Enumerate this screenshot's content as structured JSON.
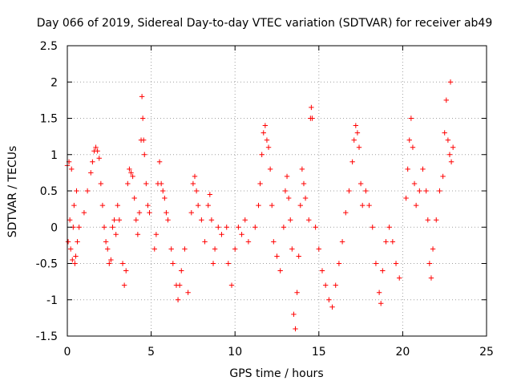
{
  "chart_data": {
    "type": "scatter",
    "title": "Day 066 of 2019, Sidereal Day-to-day VTEC variation (SDTVAR) for receiver ab49",
    "xlabel": "GPS time / hours",
    "ylabel": "SDTVAR / TECUs",
    "xlim": [
      0,
      25
    ],
    "ylim": [
      -1.5,
      2.5
    ],
    "xticks": [
      0,
      5,
      10,
      15,
      20,
      25
    ],
    "yticks": [
      -1.5,
      -1,
      -0.5,
      0,
      0.5,
      1,
      1.5,
      2,
      2.5
    ],
    "xtick_labels": [
      "0",
      "5",
      "10",
      "15",
      "20",
      "25"
    ],
    "ytick_labels": [
      "-1.5",
      "-1",
      "-0.5",
      "0",
      "0.5",
      "1",
      "1.5",
      "2",
      "2.5"
    ],
    "grid": true,
    "marker": "+",
    "color": "#ff0000",
    "x_range_of_data": [
      0,
      23
    ],
    "series": [
      {
        "name": "SDTVAR",
        "points": [
          [
            0.0,
            0.85
          ],
          [
            0.05,
            -0.2
          ],
          [
            0.1,
            0.9
          ],
          [
            0.15,
            0.1
          ],
          [
            0.2,
            -0.3
          ],
          [
            0.25,
            0.8
          ],
          [
            0.3,
            -0.45
          ],
          [
            0.35,
            0.0
          ],
          [
            0.4,
            0.3
          ],
          [
            0.45,
            -0.5
          ],
          [
            0.5,
            -0.4
          ],
          [
            0.55,
            0.5
          ],
          [
            0.6,
            -0.2
          ],
          [
            0.7,
            0.0
          ],
          [
            1.0,
            0.2
          ],
          [
            1.2,
            0.5
          ],
          [
            1.4,
            0.75
          ],
          [
            1.5,
            0.9
          ],
          [
            1.6,
            1.05
          ],
          [
            1.7,
            1.1
          ],
          [
            1.8,
            1.05
          ],
          [
            1.9,
            0.95
          ],
          [
            2.0,
            0.6
          ],
          [
            2.1,
            0.3
          ],
          [
            2.2,
            0.0
          ],
          [
            2.3,
            -0.2
          ],
          [
            2.4,
            -0.3
          ],
          [
            2.5,
            -0.5
          ],
          [
            2.6,
            -0.45
          ],
          [
            2.7,
            0.0
          ],
          [
            2.8,
            0.1
          ],
          [
            2.9,
            -0.1
          ],
          [
            3.0,
            0.3
          ],
          [
            3.1,
            0.1
          ],
          [
            3.3,
            -0.5
          ],
          [
            3.4,
            -0.8
          ],
          [
            3.5,
            -0.6
          ],
          [
            3.6,
            0.6
          ],
          [
            3.7,
            0.8
          ],
          [
            3.8,
            0.75
          ],
          [
            3.9,
            0.7
          ],
          [
            4.0,
            0.4
          ],
          [
            4.1,
            0.1
          ],
          [
            4.2,
            -0.1
          ],
          [
            4.3,
            0.2
          ],
          [
            4.4,
            1.2
          ],
          [
            4.45,
            1.8
          ],
          [
            4.5,
            1.5
          ],
          [
            4.55,
            1.2
          ],
          [
            4.6,
            1.0
          ],
          [
            4.7,
            0.6
          ],
          [
            4.8,
            0.3
          ],
          [
            4.9,
            0.2
          ],
          [
            5.2,
            -0.3
          ],
          [
            5.3,
            -0.1
          ],
          [
            5.4,
            0.6
          ],
          [
            5.5,
            0.9
          ],
          [
            5.6,
            0.6
          ],
          [
            5.7,
            0.5
          ],
          [
            5.8,
            0.4
          ],
          [
            5.9,
            0.2
          ],
          [
            6.0,
            0.1
          ],
          [
            6.2,
            -0.3
          ],
          [
            6.3,
            -0.5
          ],
          [
            6.5,
            -0.8
          ],
          [
            6.6,
            -1.0
          ],
          [
            6.7,
            -0.8
          ],
          [
            6.8,
            -0.6
          ],
          [
            7.0,
            -0.3
          ],
          [
            7.2,
            -0.9
          ],
          [
            7.4,
            0.2
          ],
          [
            7.5,
            0.6
          ],
          [
            7.6,
            0.7
          ],
          [
            7.7,
            0.5
          ],
          [
            7.8,
            0.3
          ],
          [
            8.0,
            0.1
          ],
          [
            8.2,
            -0.2
          ],
          [
            8.4,
            0.3
          ],
          [
            8.5,
            0.45
          ],
          [
            8.6,
            0.1
          ],
          [
            8.7,
            -0.5
          ],
          [
            8.8,
            -0.3
          ],
          [
            9.0,
            0.0
          ],
          [
            9.2,
            -0.1
          ],
          [
            9.5,
            0.0
          ],
          [
            9.6,
            -0.5
          ],
          [
            9.8,
            -0.8
          ],
          [
            10.0,
            -0.3
          ],
          [
            10.2,
            0.0
          ],
          [
            10.4,
            -0.1
          ],
          [
            10.6,
            0.1
          ],
          [
            10.8,
            -0.2
          ],
          [
            11.2,
            0.0
          ],
          [
            11.4,
            0.3
          ],
          [
            11.5,
            0.6
          ],
          [
            11.6,
            1.0
          ],
          [
            11.7,
            1.3
          ],
          [
            11.8,
            1.4
          ],
          [
            11.9,
            1.2
          ],
          [
            12.0,
            1.1
          ],
          [
            12.1,
            0.8
          ],
          [
            12.2,
            0.3
          ],
          [
            12.3,
            -0.2
          ],
          [
            12.5,
            -0.4
          ],
          [
            12.7,
            -0.6
          ],
          [
            12.9,
            0.0
          ],
          [
            13.0,
            0.5
          ],
          [
            13.1,
            0.7
          ],
          [
            13.2,
            0.4
          ],
          [
            13.3,
            0.1
          ],
          [
            13.4,
            -0.3
          ],
          [
            13.5,
            -1.2
          ],
          [
            13.6,
            -1.4
          ],
          [
            13.7,
            -0.9
          ],
          [
            13.8,
            -0.4
          ],
          [
            13.9,
            0.3
          ],
          [
            14.0,
            0.8
          ],
          [
            14.1,
            0.6
          ],
          [
            14.2,
            0.4
          ],
          [
            14.4,
            0.1
          ],
          [
            14.5,
            1.5
          ],
          [
            14.55,
            1.65
          ],
          [
            14.6,
            1.5
          ],
          [
            14.8,
            0.0
          ],
          [
            15.0,
            -0.3
          ],
          [
            15.2,
            -0.6
          ],
          [
            15.4,
            -0.8
          ],
          [
            15.6,
            -1.0
          ],
          [
            15.8,
            -1.1
          ],
          [
            16.0,
            -0.8
          ],
          [
            16.2,
            -0.5
          ],
          [
            16.4,
            -0.2
          ],
          [
            16.6,
            0.2
          ],
          [
            16.8,
            0.5
          ],
          [
            17.0,
            0.9
          ],
          [
            17.1,
            1.2
          ],
          [
            17.2,
            1.4
          ],
          [
            17.3,
            1.3
          ],
          [
            17.4,
            1.1
          ],
          [
            17.5,
            0.6
          ],
          [
            17.6,
            0.3
          ],
          [
            17.8,
            0.5
          ],
          [
            18.0,
            0.3
          ],
          [
            18.2,
            0.0
          ],
          [
            18.4,
            -0.5
          ],
          [
            18.6,
            -0.9
          ],
          [
            18.7,
            -1.05
          ],
          [
            18.8,
            -0.6
          ],
          [
            19.0,
            -0.2
          ],
          [
            19.2,
            0.0
          ],
          [
            19.4,
            -0.2
          ],
          [
            19.6,
            -0.5
          ],
          [
            19.8,
            -0.7
          ],
          [
            20.2,
            0.4
          ],
          [
            20.3,
            0.8
          ],
          [
            20.4,
            1.2
          ],
          [
            20.5,
            1.5
          ],
          [
            20.6,
            1.1
          ],
          [
            20.7,
            0.6
          ],
          [
            20.8,
            0.3
          ],
          [
            21.0,
            0.5
          ],
          [
            21.2,
            0.8
          ],
          [
            21.4,
            0.5
          ],
          [
            21.5,
            0.1
          ],
          [
            21.6,
            -0.5
          ],
          [
            21.7,
            -0.7
          ],
          [
            21.8,
            -0.3
          ],
          [
            22.0,
            0.1
          ],
          [
            22.2,
            0.5
          ],
          [
            22.4,
            0.7
          ],
          [
            22.5,
            1.3
          ],
          [
            22.6,
            1.75
          ],
          [
            22.7,
            1.2
          ],
          [
            22.8,
            1.0
          ],
          [
            22.85,
            2.0
          ],
          [
            22.9,
            0.9
          ],
          [
            23.0,
            1.1
          ]
        ]
      }
    ]
  }
}
